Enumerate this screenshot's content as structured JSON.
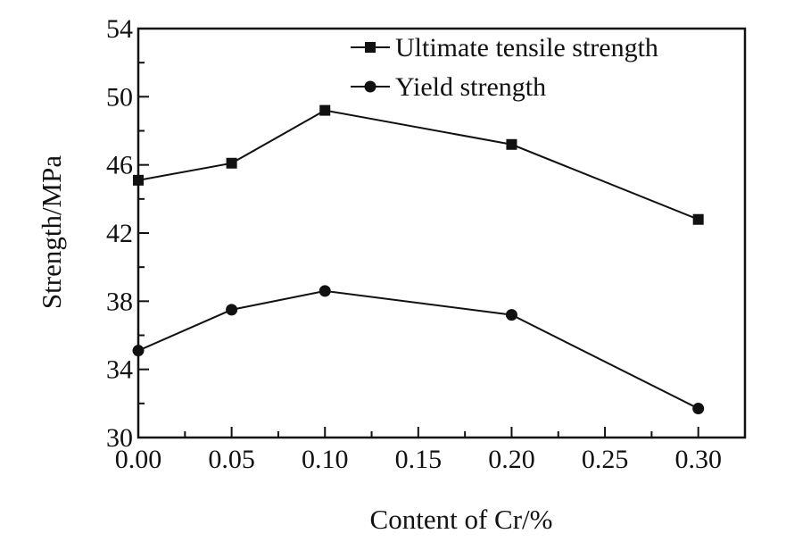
{
  "chart_data": {
    "type": "line",
    "title": "",
    "xlabel": "Content of Cr/%",
    "ylabel": "Strength/MPa",
    "xlim": [
      0,
      0.325
    ],
    "ylim": [
      30,
      54
    ],
    "xticks": [
      "0.00",
      "0.05",
      "0.10",
      "0.15",
      "0.20",
      "0.25",
      "0.30"
    ],
    "yticks": [
      "30",
      "34",
      "38",
      "42",
      "46",
      "50",
      "54"
    ],
    "grid": false,
    "legend_position": "top-right",
    "series": [
      {
        "name": "Ultimate tensile strength",
        "marker": "square",
        "x": [
          0,
          0.05,
          0.1,
          0.2,
          0.3
        ],
        "y": [
          45.1,
          46.1,
          49.2,
          47.2,
          42.8
        ]
      },
      {
        "name": "Yield strength",
        "marker": "circle",
        "x": [
          0,
          0.05,
          0.1,
          0.2,
          0.3
        ],
        "y": [
          35.1,
          37.5,
          38.6,
          37.2,
          31.7
        ]
      }
    ],
    "colors": {
      "line": "#111111",
      "background": "#ffffff"
    }
  }
}
